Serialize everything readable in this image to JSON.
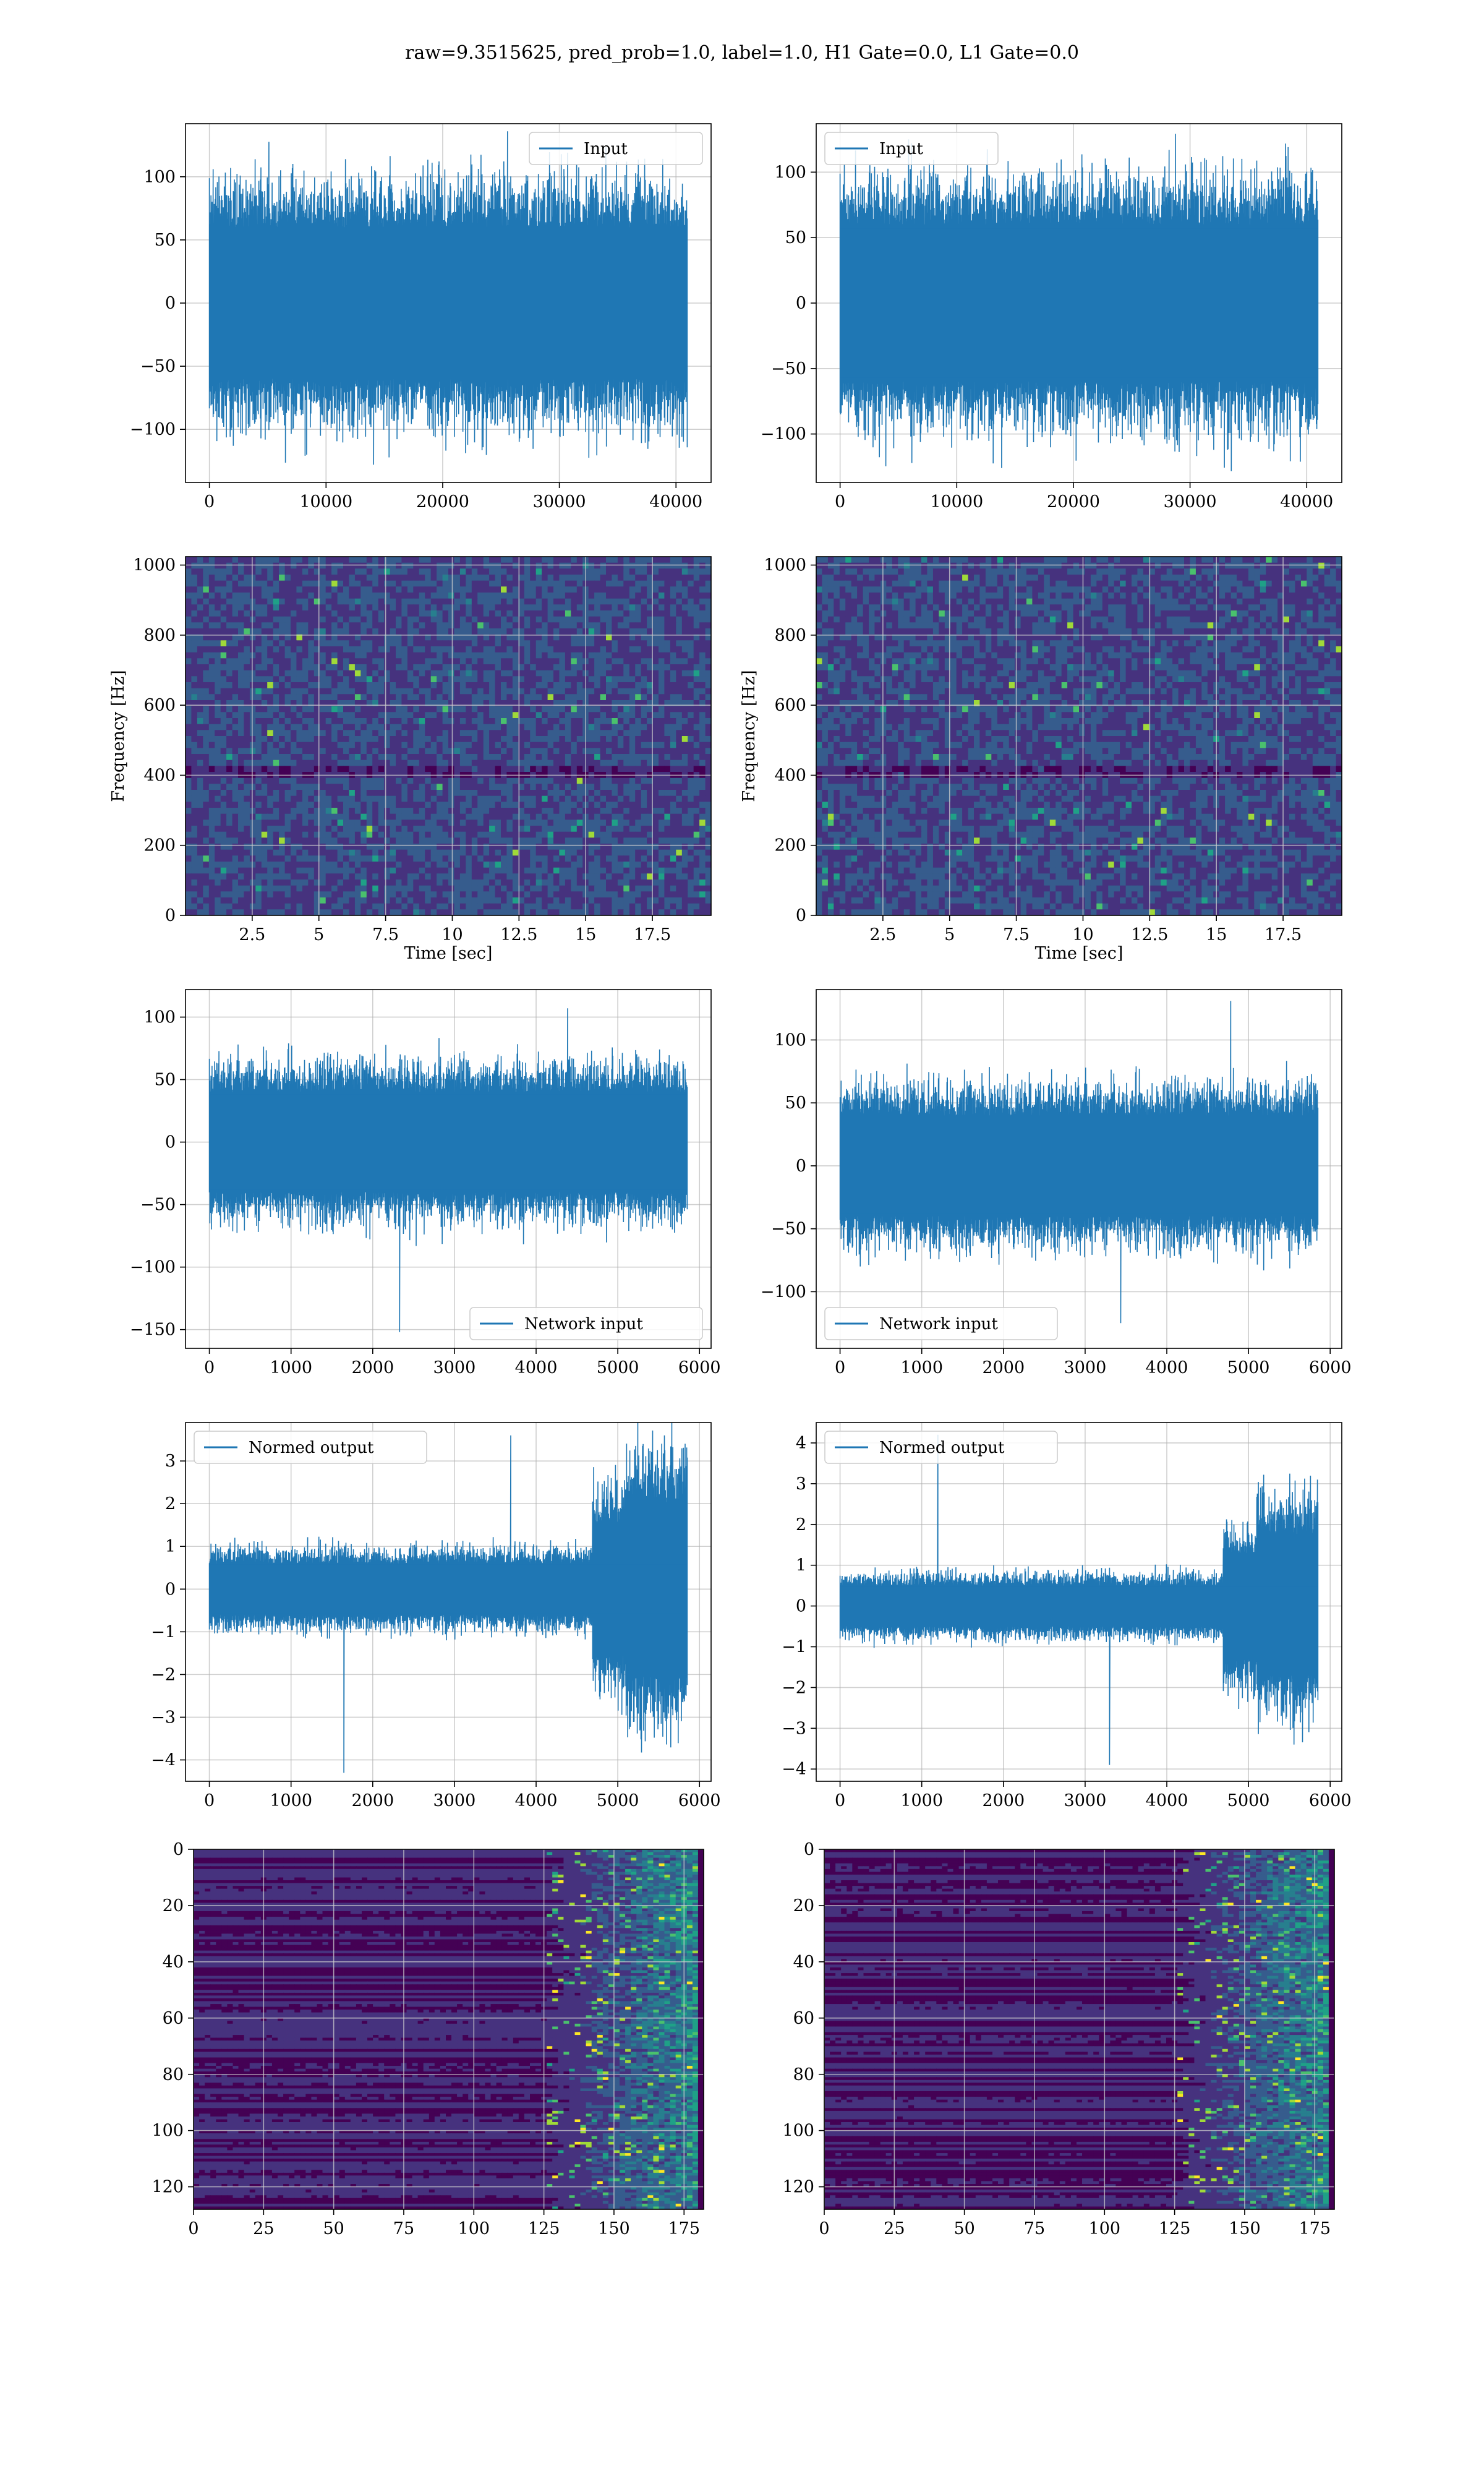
{
  "figure": {
    "title": "raw=9.3515625, pred_prob=1.0, label=1.0, H1 Gate=0.0, L1 Gate=0.0",
    "colors": {
      "line": "#1f77b4",
      "viridis_dark": "#440154",
      "viridis_mid": "#3b528b",
      "viridis_teal": "#21918c",
      "viridis_green": "#5ec962",
      "viridis_yellow": "#fde725",
      "grid": "#b0b0b0"
    }
  },
  "chart_data": [
    {
      "id": "input-h1",
      "type": "line",
      "grid": true,
      "xlim": [
        -2048,
        43008
      ],
      "ylim": [
        -142,
        142
      ],
      "xticks": [
        0,
        10000,
        20000,
        30000,
        40000
      ],
      "yticks": [
        100,
        50,
        0,
        -50,
        -100
      ],
      "legend": "top-right",
      "series": [
        {
          "name": "Input",
          "n_samples": 40960,
          "envelope": 60,
          "spike_max": 136,
          "spike_min": -128
        }
      ],
      "xlabel": "",
      "ylabel": ""
    },
    {
      "id": "input-l1",
      "type": "line",
      "grid": true,
      "xlim": [
        -2048,
        43008
      ],
      "ylim": [
        -137,
        137
      ],
      "xticks": [
        0,
        10000,
        20000,
        30000,
        40000
      ],
      "yticks": [
        100,
        50,
        0,
        -50,
        -100
      ],
      "legend": "top-left",
      "series": [
        {
          "name": "Input",
          "n_samples": 40960,
          "envelope": 60,
          "spike_max": 122,
          "spike_min": -126
        }
      ],
      "xlabel": "",
      "ylabel": ""
    },
    {
      "id": "spectrogram-h1",
      "type": "heatmap",
      "grid": true,
      "xlim": [
        0,
        19.7
      ],
      "ylim": [
        0,
        1024
      ],
      "xticks": [
        2.5,
        5.0,
        7.5,
        10.0,
        12.5,
        15.0,
        17.5
      ],
      "yticks": [
        0,
        200,
        400,
        600,
        800,
        1000
      ],
      "xlabel": "Time [sec]",
      "ylabel": "Frequency [Hz]"
    },
    {
      "id": "spectrogram-l1",
      "type": "heatmap",
      "grid": true,
      "xlim": [
        0,
        19.7
      ],
      "ylim": [
        0,
        1024
      ],
      "xticks": [
        2.5,
        5.0,
        7.5,
        10.0,
        12.5,
        15.0,
        17.5
      ],
      "yticks": [
        0,
        200,
        400,
        600,
        800,
        1000
      ],
      "xlabel": "Time [sec]",
      "ylabel": "Frequency [Hz]"
    },
    {
      "id": "network-input-h1",
      "type": "line",
      "grid": true,
      "xlim": [
        -292,
        6142
      ],
      "ylim": [
        -165,
        122
      ],
      "xticks": [
        0,
        1000,
        2000,
        3000,
        4000,
        5000,
        6000
      ],
      "yticks": [
        100,
        50,
        0,
        -50,
        -100,
        -150
      ],
      "legend": "bottom-right",
      "series": [
        {
          "name": "Network input",
          "n_samples": 5850,
          "envelope": 40,
          "spike_max": 107,
          "spike_min": -152
        }
      ],
      "xlabel": "",
      "ylabel": ""
    },
    {
      "id": "network-input-l1",
      "type": "line",
      "grid": true,
      "xlim": [
        -292,
        6142
      ],
      "ylim": [
        -145,
        140
      ],
      "xticks": [
        0,
        1000,
        2000,
        3000,
        4000,
        5000,
        6000
      ],
      "yticks": [
        100,
        50,
        0,
        -50,
        -100
      ],
      "legend": "bottom-left",
      "series": [
        {
          "name": "Network input",
          "n_samples": 5850,
          "envelope": 40,
          "spike_max": 131,
          "spike_min": -125
        }
      ],
      "xlabel": "",
      "ylabel": ""
    },
    {
      "id": "normed-output-h1",
      "type": "line",
      "grid": true,
      "xlim": [
        -292,
        6142
      ],
      "ylim": [
        -4.5,
        3.9
      ],
      "xticks": [
        0,
        1000,
        2000,
        3000,
        4000,
        5000,
        6000
      ],
      "yticks": [
        3,
        2,
        1,
        0,
        -1,
        -2,
        -3,
        -4
      ],
      "legend": "top-left",
      "series": [
        {
          "name": "Normed output",
          "n_samples": 5850,
          "envelope": 0.6,
          "spike_max": 3.6,
          "spike_min": -4.3
        }
      ],
      "xlabel": "",
      "ylabel": ""
    },
    {
      "id": "normed-output-l1",
      "type": "line",
      "grid": true,
      "xlim": [
        -292,
        6142
      ],
      "ylim": [
        -4.3,
        4.5
      ],
      "xticks": [
        0,
        1000,
        2000,
        3000,
        4000,
        5000,
        6000
      ],
      "yticks": [
        4,
        3,
        2,
        1,
        0,
        -1,
        -2,
        -3,
        -4
      ],
      "legend": "top-left",
      "series": [
        {
          "name": "Normed output",
          "n_samples": 5850,
          "envelope": 0.5,
          "spike_max": 4.2,
          "spike_min": -3.9
        }
      ],
      "xlabel": "",
      "ylabel": ""
    },
    {
      "id": "feature-map-h1",
      "type": "heatmap",
      "grid": true,
      "xlim": [
        0,
        182
      ],
      "ylim": [
        128,
        0
      ],
      "xticks": [
        0,
        25,
        50,
        75,
        100,
        125,
        150,
        175
      ],
      "yticks": [
        0,
        20,
        40,
        60,
        80,
        100,
        120
      ],
      "xlabel": "",
      "ylabel": ""
    },
    {
      "id": "feature-map-l1",
      "type": "heatmap",
      "grid": true,
      "xlim": [
        0,
        182
      ],
      "ylim": [
        128,
        0
      ],
      "xticks": [
        0,
        25,
        50,
        75,
        100,
        125,
        150,
        175
      ],
      "yticks": [
        0,
        20,
        40,
        60,
        80,
        100,
        120
      ],
      "xlabel": "",
      "ylabel": ""
    }
  ]
}
